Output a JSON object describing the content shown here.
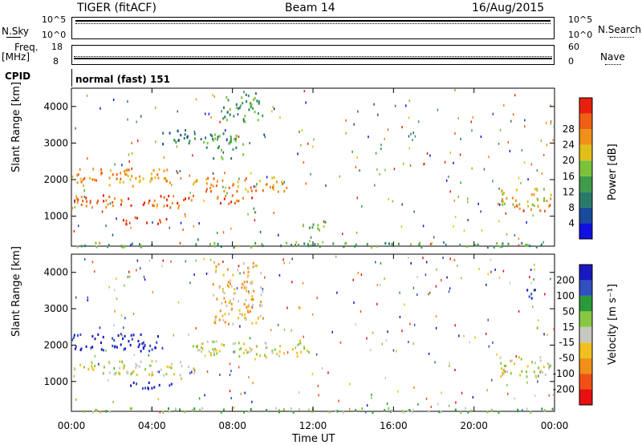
{
  "header": {
    "station": "TIGER (fitACF)",
    "beam": "Beam 14",
    "date": "16/Aug/2015"
  },
  "strip": {
    "nsky_label": "N.Sky",
    "nsearch_label": "N.Search",
    "nsky_ticks": [
      "10^5",
      "10^0"
    ],
    "freq_label": "Freq.",
    "freq_unit": "[MHz]",
    "freq_ticks": [
      "18",
      "8"
    ],
    "nave_label": "Nave",
    "nave_ticks": [
      "60",
      "0"
    ],
    "cpid_label": "CPID",
    "cpid_value": "normal (fast) 151"
  },
  "chart_data": [
    {
      "type": "heatmap",
      "panel": "power",
      "ylabel": "Slant Range [km]",
      "yticks": [
        1000,
        2000,
        3000,
        4000
      ],
      "ylim": [
        180,
        4500
      ],
      "xlim_hours": [
        0,
        24
      ],
      "colorbar": {
        "label": "Power [dB]",
        "ticks": [
          "4",
          "8",
          "12",
          "16",
          "20",
          "24",
          "28"
        ],
        "colors": [
          "#1010e0",
          "#1a4a9a",
          "#2a7a6a",
          "#3f9b4a",
          "#7ac23a",
          "#e0c018",
          "#f09018",
          "#f06014",
          "#e82010"
        ]
      },
      "regions": [
        {
          "t": [
            0.0,
            6.2
          ],
          "r": [
            1250,
            1600
          ],
          "level": 7
        },
        {
          "t": [
            0.0,
            5.0
          ],
          "r": [
            1850,
            2350
          ],
          "level": 6
        },
        {
          "t": [
            2.5,
            4.8
          ],
          "r": [
            800,
            1000
          ],
          "level": 8
        },
        {
          "t": [
            6.0,
            10.8
          ],
          "r": [
            1700,
            2100
          ],
          "level": 6
        },
        {
          "t": [
            7.0,
            9.0
          ],
          "r": [
            1350,
            1600
          ],
          "level": 7
        },
        {
          "t": [
            6.5,
            8.5
          ],
          "r": [
            2600,
            3300
          ],
          "level": 3
        },
        {
          "t": [
            4.5,
            6.5
          ],
          "r": [
            3000,
            3400
          ],
          "level": 2
        },
        {
          "t": [
            21.0,
            23.8
          ],
          "r": [
            1300,
            1800
          ],
          "level": 5
        },
        {
          "t": [
            22.0,
            23.8
          ],
          "r": [
            1150,
            1350
          ],
          "level": 7
        },
        {
          "t": [
            0.0,
            24.0
          ],
          "r": [
            180,
            300
          ],
          "level": 3
        },
        {
          "t": [
            7.5,
            9.5
          ],
          "r": [
            3600,
            4400
          ],
          "level": 3
        },
        {
          "t": [
            11.5,
            12.8
          ],
          "r": [
            650,
            900
          ],
          "level": 4
        }
      ]
    },
    {
      "type": "heatmap",
      "panel": "velocity",
      "ylabel": "Slant Range [km]",
      "xlabel": "Time UT",
      "xticks": [
        "00:00",
        "04:00",
        "08:00",
        "12:00",
        "16:00",
        "20:00",
        "00:00"
      ],
      "yticks": [
        1000,
        2000,
        3000,
        4000
      ],
      "ylim": [
        180,
        4500
      ],
      "xlim_hours": [
        0,
        24
      ],
      "colorbar": {
        "label": "Velocity [m s⁻¹]",
        "ticks": [
          "-200",
          "-100",
          "-50",
          "-15",
          "15",
          "50",
          "100",
          "200"
        ],
        "colors": [
          "#e81010",
          "#f05018",
          "#f09018",
          "#f0c020",
          "#c8c8c0",
          "#88c840",
          "#2a9a3a",
          "#3050c0",
          "#1818c0"
        ]
      },
      "regions": [
        {
          "t": [
            0.0,
            6.2
          ],
          "r": [
            1200,
            1600
          ],
          "level": 4
        },
        {
          "t": [
            0.0,
            4.5
          ],
          "r": [
            1850,
            2350
          ],
          "level": 8
        },
        {
          "t": [
            6.0,
            12.0
          ],
          "r": [
            1700,
            2150
          ],
          "level": 4
        },
        {
          "t": [
            21.0,
            23.8
          ],
          "r": [
            1150,
            1700
          ],
          "level": 4
        },
        {
          "t": [
            2.5,
            5.0
          ],
          "r": [
            800,
            1000
          ],
          "level": 8
        },
        {
          "t": [
            0.0,
            24.0
          ],
          "r": [
            180,
            300
          ],
          "level": 5
        },
        {
          "t": [
            7.0,
            9.5
          ],
          "r": [
            2600,
            4300
          ],
          "level": 3
        },
        {
          "t": [
            22.5,
            23.2
          ],
          "r": [
            3300,
            3600
          ],
          "level": 8
        }
      ]
    }
  ]
}
